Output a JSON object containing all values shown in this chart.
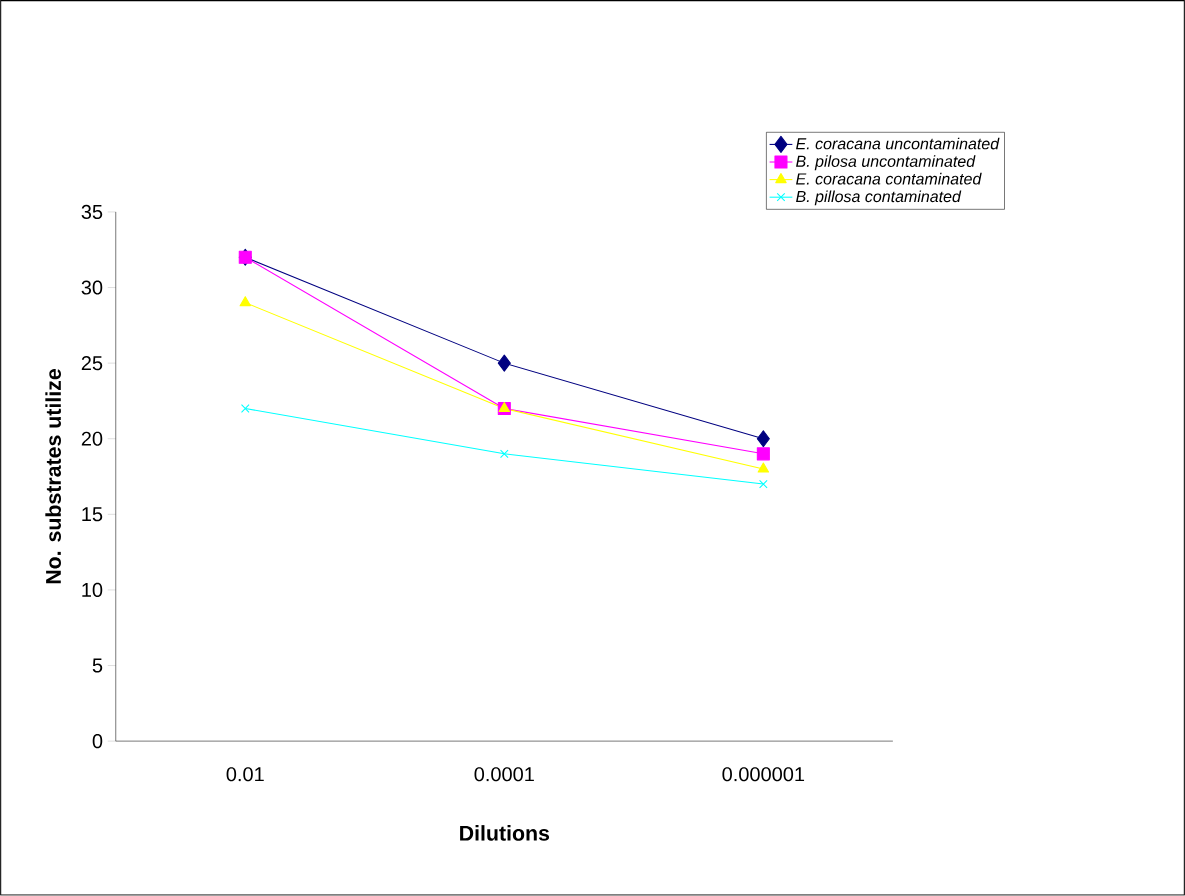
{
  "chart_data": {
    "type": "line",
    "xlabel": "Dilutions",
    "ylabel": "No. substrates utilize",
    "categories": [
      "0.01",
      "0.0001",
      "0.000001"
    ],
    "series": [
      {
        "name": "E. coracana uncontaminated",
        "color": "#000080",
        "marker": "diamond",
        "values": [
          32,
          25,
          20
        ]
      },
      {
        "name": "B. pilosa uncontaminated",
        "color": "#ff00ff",
        "marker": "square",
        "values": [
          32,
          22,
          19
        ]
      },
      {
        "name": "E. coracana contaminated",
        "color": "#ffff00",
        "marker": "triangle",
        "values": [
          29,
          22,
          18
        ]
      },
      {
        "name": "B. pillosa contaminated",
        "color": "#00ffff",
        "marker": "cross",
        "values": [
          22,
          19,
          17
        ]
      }
    ],
    "ylim": [
      0,
      35
    ],
    "yticks": [
      0,
      5,
      10,
      15,
      20,
      25,
      30,
      35
    ],
    "grid": false,
    "legend": "top right"
  }
}
